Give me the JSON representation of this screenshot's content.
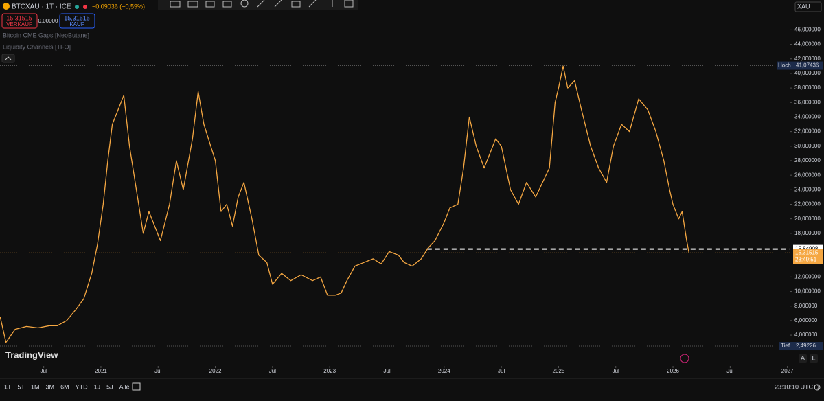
{
  "header": {
    "symbol": "BTCXAU · 1T · ICE",
    "change": "−0,09036 (−0,59%)",
    "sell_price": "15,31515",
    "sell_label": "VERKAUF",
    "spread": "0,00000",
    "buy_price": "15,31515",
    "buy_label": "KAUF"
  },
  "indicators": [
    "Bitcoin CME Gaps [NeoButane]",
    "Liquidity Channels [TFO]"
  ],
  "currency": "XAU",
  "brand": "TradingView",
  "timeframes": [
    "1T",
    "5T",
    "1M",
    "3M",
    "6M",
    "YTD",
    "1J",
    "5J",
    "Alle"
  ],
  "clock": "23:10:10 UTC+1",
  "scale_buttons": [
    "A",
    "L"
  ],
  "chart_data": {
    "type": "line",
    "color": "#f5a742",
    "x": [
      2020.12,
      2020.17,
      2020.25,
      2020.35,
      2020.45,
      2020.55,
      2020.62,
      2020.7,
      2020.78,
      2020.85,
      2020.92,
      2020.97,
      2021.02,
      2021.06,
      2021.1,
      2021.15,
      2021.2,
      2021.25,
      2021.37,
      2021.42,
      2021.52,
      2021.6,
      2021.66,
      2021.72,
      2021.8,
      2021.85,
      2021.9,
      2021.96,
      2022.0,
      2022.05,
      2022.1,
      2022.15,
      2022.2,
      2022.25,
      2022.32,
      2022.38,
      2022.45,
      2022.5,
      2022.58,
      2022.66,
      2022.75,
      2022.85,
      2022.92,
      2022.98,
      2023.05,
      2023.1,
      2023.15,
      2023.22,
      2023.3,
      2023.38,
      2023.45,
      2023.52,
      2023.6,
      2023.65,
      2023.72,
      2023.8,
      2023.86,
      2023.92,
      2024.0,
      2024.05,
      2024.12,
      2024.17,
      2024.22,
      2024.28,
      2024.35,
      2024.45,
      2024.5,
      2024.58,
      2024.65,
      2024.72,
      2024.8,
      2024.86,
      2024.92,
      2024.97,
      2025.0,
      2025.04,
      2025.08,
      2025.14,
      2025.2,
      2025.28,
      2025.35,
      2025.42,
      2025.48,
      2025.55,
      2025.62,
      2025.7,
      2025.78,
      2025.85,
      2025.92,
      2025.97,
      2026.0,
      2026.05,
      2026.08,
      2026.12,
      2026.14
    ],
    "values": [
      6.5,
      3,
      4.8,
      5.2,
      5.0,
      5.3,
      5.3,
      6.0,
      7.5,
      9.0,
      12.5,
      16.5,
      22,
      28,
      33,
      35,
      37,
      30,
      18,
      21,
      17,
      22,
      28,
      24,
      31,
      37.5,
      33,
      30,
      28,
      21,
      22,
      19,
      23,
      25,
      20,
      15,
      14,
      11,
      12.5,
      11.5,
      12.3,
      11.5,
      12,
      9.5,
      9.5,
      9.8,
      11.5,
      13.5,
      14,
      14.5,
      13.8,
      15.5,
      15,
      14,
      13.5,
      14.5,
      16,
      17,
      19.5,
      21.5,
      22,
      27,
      34,
      30,
      27,
      31,
      30,
      24,
      22,
      25,
      23,
      25,
      27,
      36,
      38,
      41,
      38,
      39,
      35,
      30,
      27,
      25,
      30,
      33,
      32,
      36.5,
      35,
      32,
      28,
      24,
      22,
      20,
      21,
      17,
      15.3
    ],
    "xlim": [
      2020.118,
      2027.02
    ],
    "ylim": [
      2.4,
      50.1
    ],
    "xticks": [
      {
        "value": 2020.5,
        "label": "Jul"
      },
      2021,
      {
        "value": 2021.5,
        "label": "Jul"
      },
      2022,
      {
        "value": 2022.5,
        "label": "Jul"
      },
      2023,
      {
        "value": 2023.5,
        "label": "Jul"
      },
      2024,
      {
        "value": 2024.5,
        "label": "Jul"
      },
      2025,
      {
        "value": 2025.5,
        "label": "Jul"
      },
      2026,
      {
        "value": 2026.5,
        "label": "Jul"
      },
      2027
    ],
    "yticks": [
      {
        "value": 4,
        "label": "4,000000"
      },
      {
        "value": 6,
        "label": "6,000000"
      },
      {
        "value": 8,
        "label": "8,000000"
      },
      {
        "value": 10,
        "label": "10,000000"
      },
      {
        "value": 12,
        "label": "12,000000"
      },
      {
        "value": 18,
        "label": "18,000000"
      },
      {
        "value": 20,
        "label": "20,000000"
      },
      {
        "value": 22,
        "label": "22,000000"
      },
      {
        "value": 24,
        "label": "24,000000"
      },
      {
        "value": 26,
        "label": "26,000000"
      },
      {
        "value": 28,
        "label": "28,000000"
      },
      {
        "value": 30,
        "label": "30,000000"
      },
      {
        "value": 32,
        "label": "32,000000"
      },
      {
        "value": 34,
        "label": "34,000000"
      },
      {
        "value": 36,
        "label": "36,000000"
      },
      {
        "value": 38,
        "label": "38,000000"
      },
      {
        "value": 40,
        "label": "40,000000"
      },
      {
        "value": 42,
        "label": "42,000000"
      },
      {
        "value": 44,
        "label": "44,000000"
      },
      {
        "value": 46,
        "label": "46,000000"
      }
    ],
    "high_name": "Hoch",
    "high": {
      "value": 41.07436,
      "label": "41,07436"
    },
    "low_name": "Tief",
    "low": {
      "value": 2.49226,
      "label": "2,49226"
    },
    "level_start": 2023.85,
    "level": {
      "value": 15.84908,
      "label": "15,84908"
    },
    "last_price": {
      "value": 15.31515,
      "label": "15,31515"
    },
    "countdown": "23:49:51"
  }
}
